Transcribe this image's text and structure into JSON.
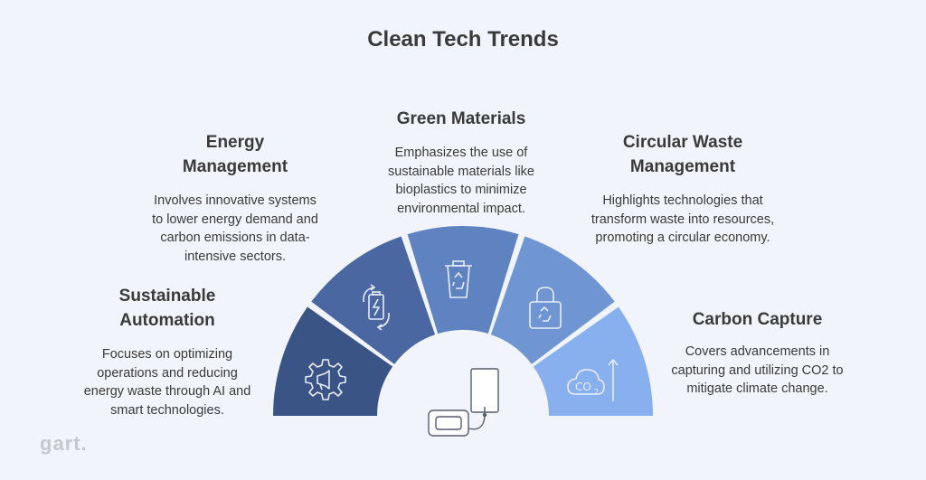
{
  "title": "Clean Tech Trends",
  "colors": {
    "background": "#f1f4fb",
    "segment_dark": "#3a5485",
    "segment_mid": "#4a67a2",
    "segment_center": "#5f82c0",
    "segment_light": "#6f95d3",
    "segment_lightest": "#88b0ef"
  },
  "cards": {
    "sustainable_automation": {
      "title_line1": "Sustainable",
      "title_line2": "Automation",
      "description": "Focuses on optimizing operations and reducing energy waste through AI and smart technologies.",
      "icon": "gear-megaphone-icon"
    },
    "energy_management": {
      "title_line1": "Energy",
      "title_line2": "Management",
      "description": "Involves innovative systems to lower energy demand and carbon emissions in data-intensive sectors.",
      "icon": "battery-cycle-icon"
    },
    "green_materials": {
      "title": "Green Materials",
      "description": "Emphasizes the use of sustainable materials like bioplastics to minimize environmental impact.",
      "icon": "recycle-bin-icon"
    },
    "circular_waste": {
      "title_line1": "Circular Waste",
      "title_line2": "Management",
      "description": "Highlights technologies that transform waste into resources, promoting a circular economy.",
      "icon": "recycle-bag-icon"
    },
    "carbon_capture": {
      "title": "Carbon Capture",
      "description": "Covers advancements in capturing and utilizing CO2 to mitigate climate change.",
      "icon": "co2-cloud-icon"
    }
  },
  "center_icon": "battery-storage-icon",
  "logo": "gart."
}
